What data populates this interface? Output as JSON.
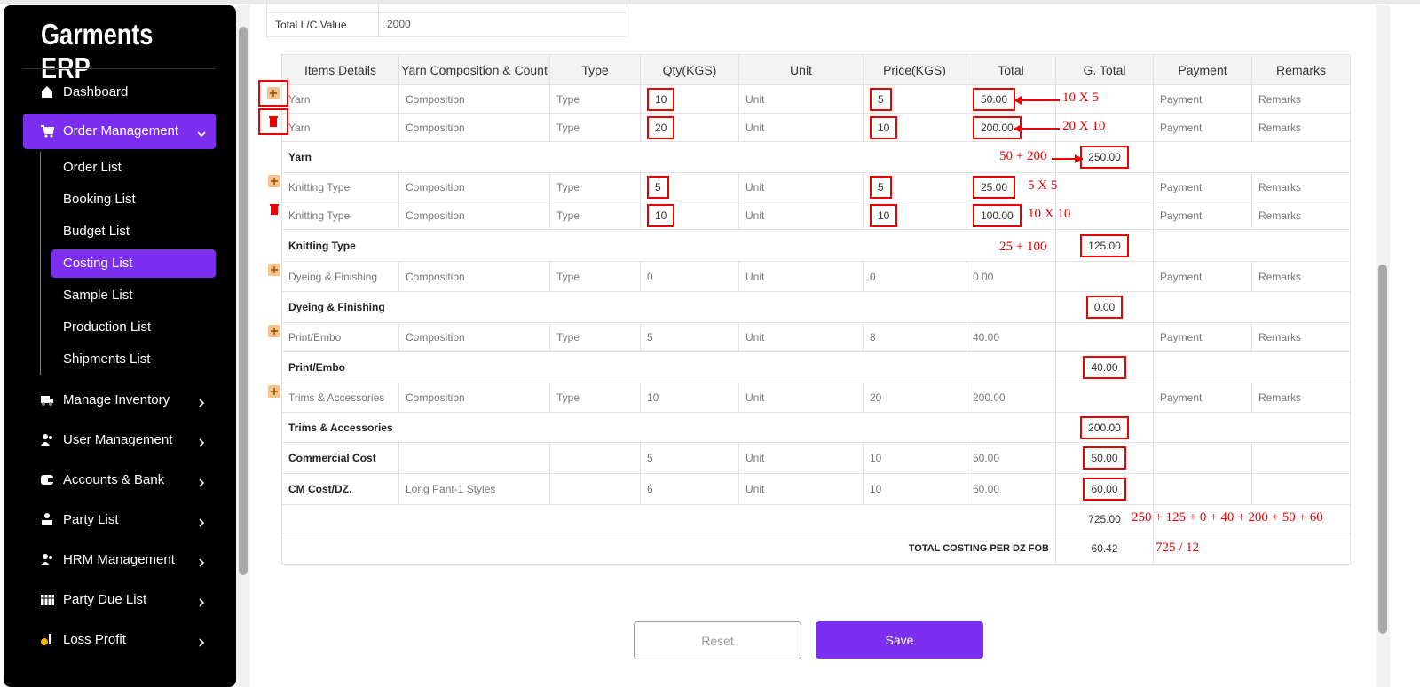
{
  "sidebar": {
    "brand": "Garments ERP",
    "menu": [
      {
        "label": "Dashboard",
        "icon": "home"
      },
      {
        "label": "Order Management",
        "icon": "cart",
        "active": true,
        "expandable": true,
        "submenu": [
          {
            "label": "Order List"
          },
          {
            "label": "Booking List"
          },
          {
            "label": "Budget List"
          },
          {
            "label": "Costing List",
            "active": true
          },
          {
            "label": "Sample List"
          },
          {
            "label": "Production List"
          },
          {
            "label": "Shipments List"
          }
        ]
      },
      {
        "label": "Manage Inventory",
        "icon": "truck",
        "expandable": true
      },
      {
        "label": "User Management",
        "icon": "users",
        "expandable": true
      },
      {
        "label": "Accounts & Bank",
        "icon": "wallet",
        "expandable": true
      },
      {
        "label": "Party List",
        "icon": "party",
        "expandable": true
      },
      {
        "label": "HRM Management",
        "icon": "users",
        "expandable": true
      },
      {
        "label": "Party Due List",
        "icon": "calendar",
        "expandable": true
      },
      {
        "label": "Loss Profit",
        "icon": "coin",
        "expandable": true
      }
    ]
  },
  "lc_table": {
    "label": "Total L/C Value",
    "value": "2000"
  },
  "table": {
    "headers": [
      "Items Details",
      "Yarn Composition & Count",
      "Type",
      "Qty(KGS)",
      "Unit",
      "Price(KGS)",
      "Total",
      "G. Total",
      "Payment",
      "Remarks"
    ],
    "rows": [
      {
        "kind": "item",
        "icon": "add",
        "item": "Yarn",
        "composition": "Composition",
        "type": "Type",
        "qty": "10",
        "unit": "Unit",
        "price": "5",
        "total": "50.00",
        "payment": "Payment",
        "remarks": "Remarks",
        "boxed": [
          "icon",
          "qty",
          "price",
          "total"
        ],
        "note": "10 X 5",
        "arrow": true
      },
      {
        "kind": "item",
        "icon": "remove",
        "item": "Yarn",
        "composition": "Composition",
        "type": "Type",
        "qty": "20",
        "unit": "Unit",
        "price": "10",
        "total": "200.00",
        "payment": "Payment",
        "remarks": "Remarks",
        "boxed": [
          "icon",
          "qty",
          "price",
          "total"
        ],
        "note": "20 X 10",
        "arrow": true
      },
      {
        "kind": "group",
        "item": "Yarn",
        "g_total": "250.00",
        "boxed": [
          "g_total"
        ],
        "note": "50 + 200",
        "arrow": true
      },
      {
        "kind": "item",
        "icon": "add",
        "item": "Knitting Type",
        "composition": "Composition",
        "type": "Type",
        "qty": "5",
        "unit": "Unit",
        "price": "5",
        "total": "25.00",
        "payment": "Payment",
        "remarks": "Remarks",
        "boxed": [
          "qty",
          "price",
          "total"
        ],
        "note": "5 X 5"
      },
      {
        "kind": "item",
        "icon": "remove",
        "item": "Knitting Type",
        "composition": "Composition",
        "type": "Type",
        "qty": "10",
        "unit": "Unit",
        "price": "10",
        "total": "100.00",
        "payment": "Payment",
        "remarks": "Remarks",
        "boxed": [
          "qty",
          "price",
          "total"
        ],
        "note": "10 X 10"
      },
      {
        "kind": "group",
        "item": "Knitting Type",
        "g_total": "125.00",
        "boxed": [
          "g_total"
        ],
        "note": "25 + 100"
      },
      {
        "kind": "item",
        "icon": "add",
        "item": "Dyeing & Finishing",
        "composition": "Composition",
        "type": "Type",
        "qty": "0",
        "unit": "Unit",
        "price": "0",
        "total": "0.00",
        "payment": "Payment",
        "remarks": "Remarks"
      },
      {
        "kind": "group",
        "item": "Dyeing & Finishing",
        "g_total": "0.00",
        "boxed": [
          "g_total"
        ]
      },
      {
        "kind": "item",
        "icon": "add",
        "item": "Print/Embo",
        "composition": "Composition",
        "type": "Type",
        "qty": "5",
        "unit": "Unit",
        "price": "8",
        "total": "40.00",
        "payment": "Payment",
        "remarks": "Remarks"
      },
      {
        "kind": "group",
        "item": "Print/Embo",
        "g_total": "40.00",
        "boxed": [
          "g_total"
        ]
      },
      {
        "kind": "item",
        "icon": "add",
        "item": "Trims & Accessories",
        "composition": "Composition",
        "type": "Type",
        "qty": "10",
        "unit": "Unit",
        "price": "20",
        "total": "200.00",
        "payment": "Payment",
        "remarks": "Remarks"
      },
      {
        "kind": "group",
        "item": "Trims & Accessories",
        "g_total": "200.00",
        "boxed": [
          "g_total"
        ]
      },
      {
        "kind": "cost",
        "item": "Commercial Cost",
        "qty": "5",
        "unit": "Unit",
        "price": "10",
        "total": "50.00",
        "g_total": "50.00",
        "boxed": [
          "g_total"
        ]
      },
      {
        "kind": "cost",
        "item": "CM Cost/DZ.",
        "composition": "Long Pant-1 Styles",
        "qty": "6",
        "unit": "Unit",
        "price": "10",
        "total": "60.00",
        "g_total": "60.00",
        "boxed": [
          "g_total"
        ]
      },
      {
        "kind": "sum",
        "g_total": "725.00",
        "note": "250 + 125 + 0 + 40 + 200 + 50 + 60"
      },
      {
        "kind": "sum",
        "label": "TOTAL COSTING PER DZ FOB",
        "g_total": "60.42",
        "note": "725 / 12"
      }
    ]
  },
  "buttons": {
    "reset": "Reset",
    "save": "Save"
  }
}
